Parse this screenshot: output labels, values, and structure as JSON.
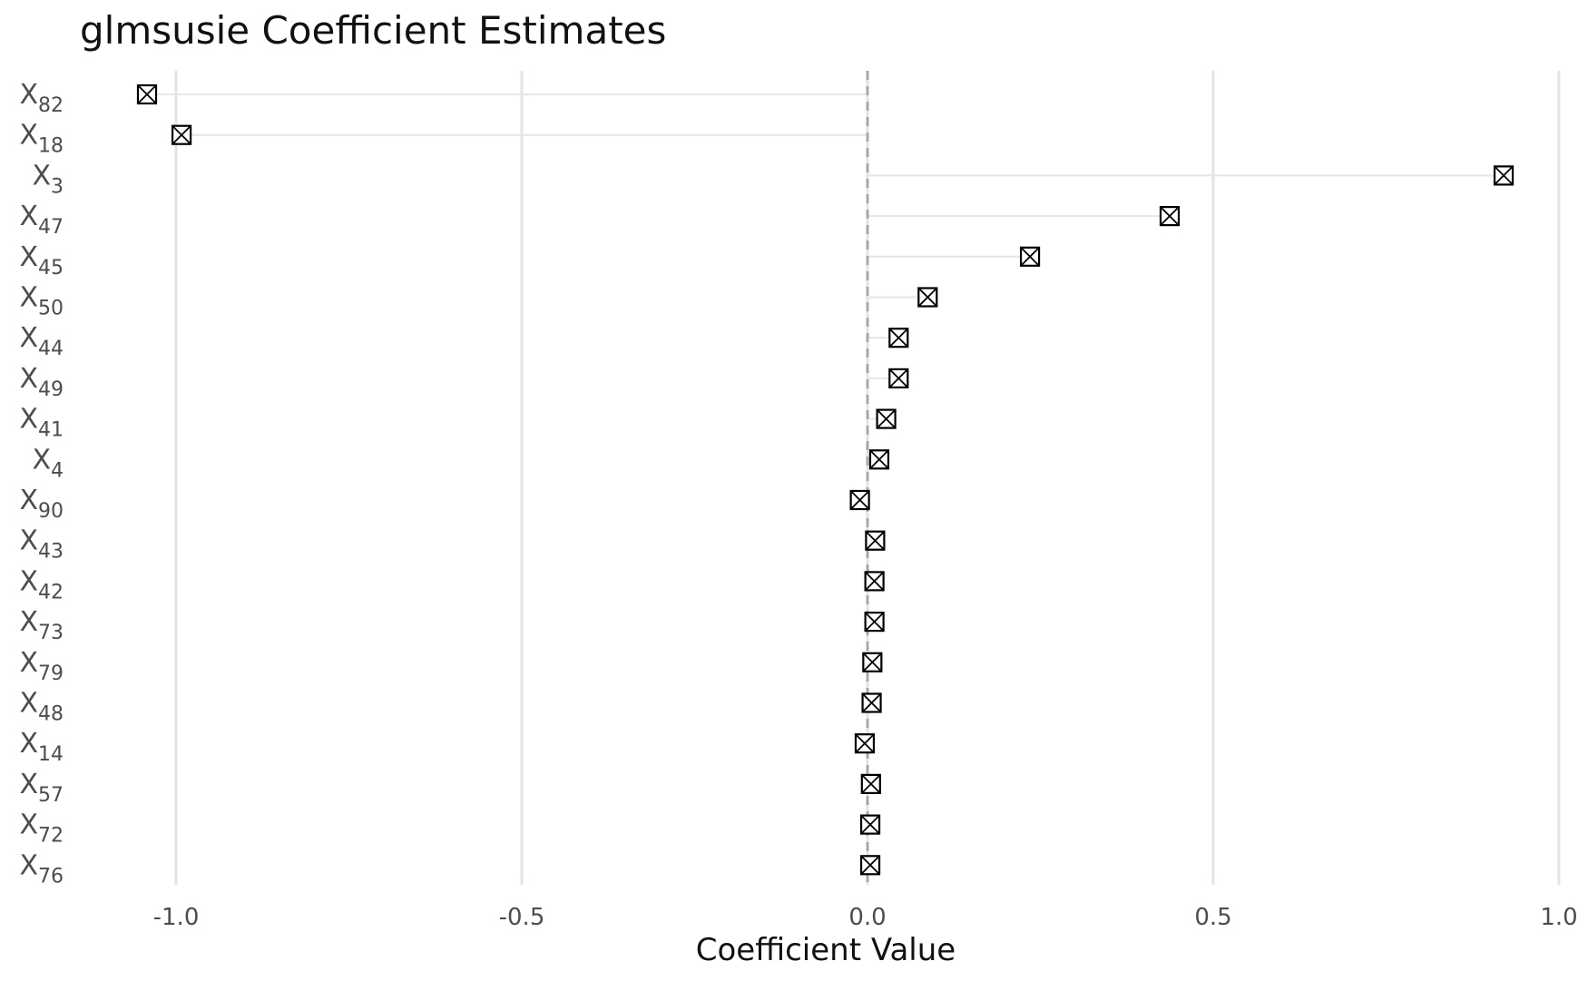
{
  "chart_data": {
    "type": "scatter",
    "title": "glmsusie Coefficient Estimates",
    "subtitle": "",
    "xlabel": "Coefficient Value",
    "ylabel": "",
    "xlim": [
      -1.05,
      1.0
    ],
    "x_ticks": [
      "-1.0",
      "-0.5",
      "0.0",
      "0.5",
      "1.0"
    ],
    "x_tick_values": [
      -1.0,
      -0.5,
      0.0,
      0.5,
      1.0
    ],
    "reference_line": 0.0,
    "grid": "vertical major",
    "marker": "square with cross",
    "series": [
      {
        "points": [
          {
            "base": "X",
            "sub": "82",
            "x": -1.042
          },
          {
            "base": "X",
            "sub": "18",
            "x": -0.992
          },
          {
            "base": "X",
            "sub": "3",
            "x": 0.92
          },
          {
            "base": "X",
            "sub": "47",
            "x": 0.437
          },
          {
            "base": "X",
            "sub": "45",
            "x": 0.235
          },
          {
            "base": "X",
            "sub": "50",
            "x": 0.087
          },
          {
            "base": "X",
            "sub": "44",
            "x": 0.045
          },
          {
            "base": "X",
            "sub": "49",
            "x": 0.045
          },
          {
            "base": "X",
            "sub": "41",
            "x": 0.027
          },
          {
            "base": "X",
            "sub": "4",
            "x": 0.017
          },
          {
            "base": "X",
            "sub": "90",
            "x": -0.011
          },
          {
            "base": "X",
            "sub": "43",
            "x": 0.011
          },
          {
            "base": "X",
            "sub": "42",
            "x": 0.01
          },
          {
            "base": "X",
            "sub": "73",
            "x": 0.01
          },
          {
            "base": "X",
            "sub": "79",
            "x": 0.007
          },
          {
            "base": "X",
            "sub": "48",
            "x": 0.006
          },
          {
            "base": "X",
            "sub": "14",
            "x": -0.004
          },
          {
            "base": "X",
            "sub": "57",
            "x": 0.005
          },
          {
            "base": "X",
            "sub": "72",
            "x": 0.004
          },
          {
            "base": "X",
            "sub": "76",
            "x": 0.004
          }
        ]
      }
    ]
  }
}
